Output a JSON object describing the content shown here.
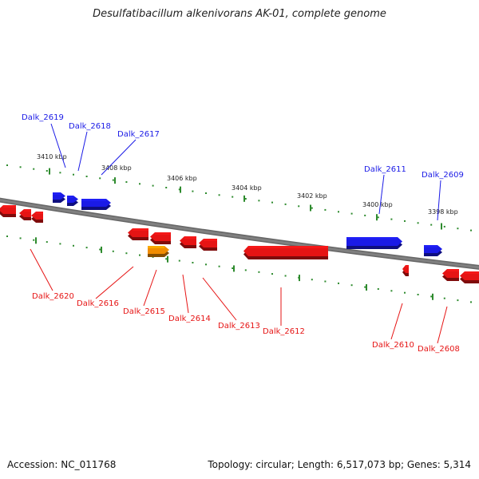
{
  "title": "Desulfatibacillum alkenivorans AK-01, complete genome",
  "footer": {
    "accession": "Accession: NC_011768",
    "summary": "Topology: circular; Length: 6,517,073 bp; Genes: 5,314"
  },
  "colors": {
    "forward": "#1a1ae6",
    "reverse": "#e61414",
    "highlight": "#f08c00",
    "backbone": "#808080",
    "tick": "#2e8b2e"
  },
  "ticks": [
    {
      "kbp": 3410,
      "label": "3410 kbp"
    },
    {
      "kbp": 3408,
      "label": "3408 kbp"
    },
    {
      "kbp": 3406,
      "label": "3406 kbp"
    },
    {
      "kbp": 3404,
      "label": "3404 kbp"
    },
    {
      "kbp": 3402,
      "label": "3402 kbp"
    },
    {
      "kbp": 3400,
      "label": "3400 kbp"
    },
    {
      "kbp": 3398,
      "label": "3398 kbp"
    }
  ],
  "forward_genes": [
    {
      "name": "Dalk_2619"
    },
    {
      "name": "Dalk_2618"
    },
    {
      "name": "Dalk_2617"
    },
    {
      "name": "Dalk_2611"
    },
    {
      "name": "Dalk_2609"
    }
  ],
  "reverse_genes": [
    {
      "name": "Dalk_2620"
    },
    {
      "name": "Dalk_2616"
    },
    {
      "name": "Dalk_2615",
      "highlight": true
    },
    {
      "name": "Dalk_2614"
    },
    {
      "name": "Dalk_2613"
    },
    {
      "name": "Dalk_2612"
    },
    {
      "name": "Dalk_2610"
    },
    {
      "name": "Dalk_2608"
    }
  ]
}
